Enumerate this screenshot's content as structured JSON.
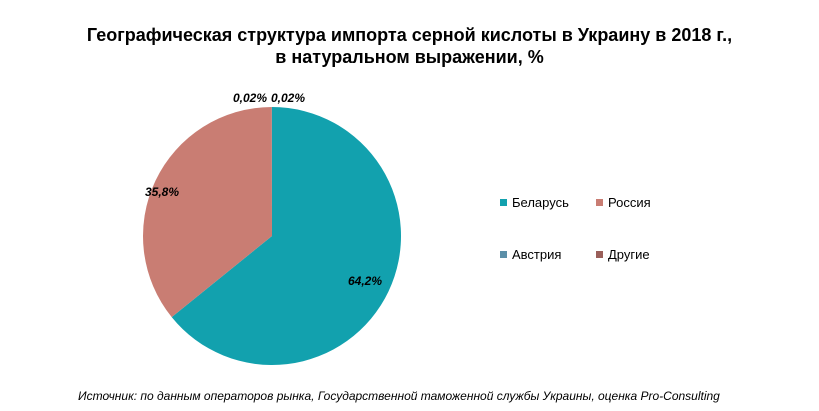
{
  "title_line1": "Географическая структура импорта серной кислоты в Украину в 2018 г.,",
  "title_line2": "в натуральном выражении, %",
  "chart_data": {
    "type": "pie",
    "title": "Географическая структура импорта серной кислоты в Украину в 2018 г., в натуральном выражении, %",
    "slices": [
      {
        "label": "Беларусь",
        "value": 64.2,
        "value_label": "64,2%",
        "color": "#12a1ae"
      },
      {
        "label": "Россия",
        "value": 35.8,
        "value_label": "35,8%",
        "color": "#c97d73"
      },
      {
        "label": "Австрия",
        "value": 0.02,
        "value_label": "0,02%",
        "color": "#5b8fa8"
      },
      {
        "label": "Другие",
        "value": 0.02,
        "value_label": "0,02%",
        "color": "#9a5f5a"
      }
    ],
    "legend_position": "right"
  },
  "source": "Источник: по данным операторов рынка, Государственной таможенной службы Украины, оценка Pro-Consulting"
}
